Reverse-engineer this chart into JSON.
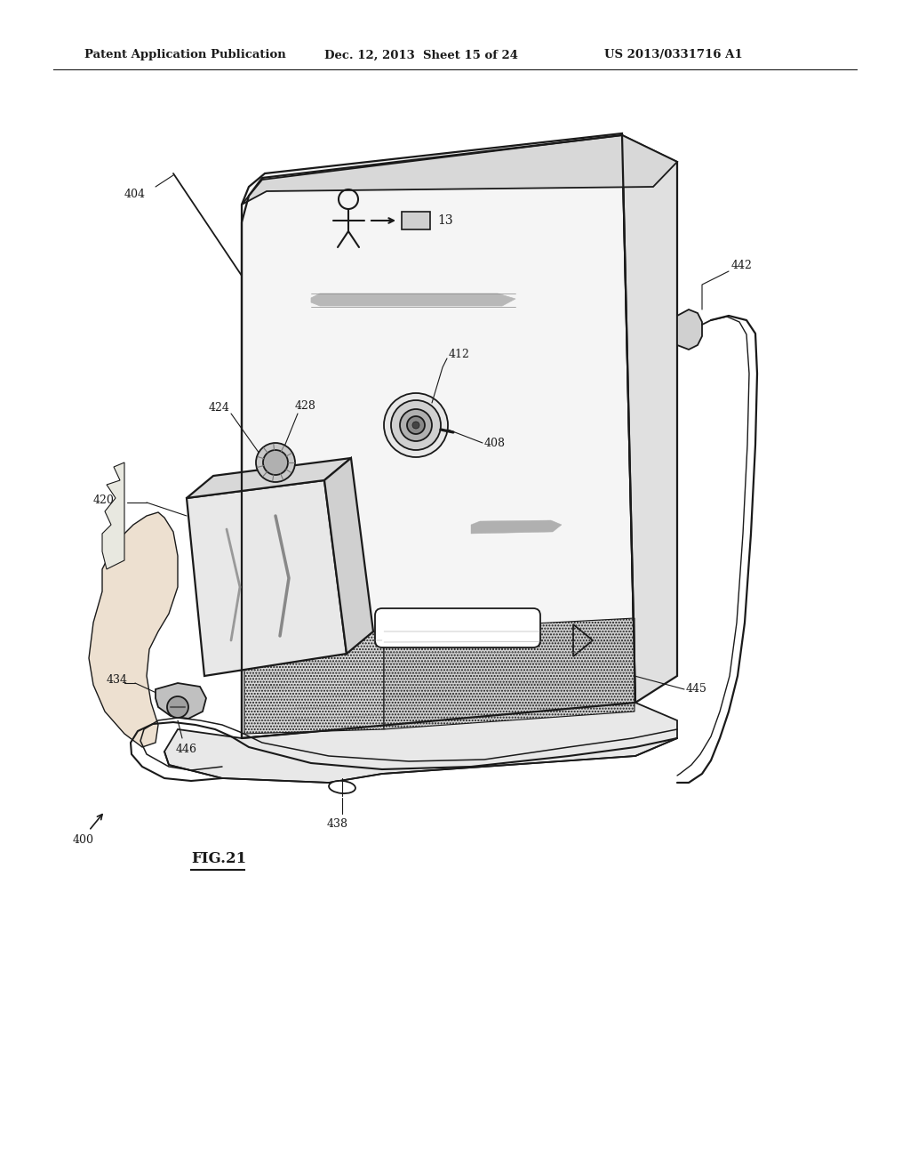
{
  "header_left": "Patent Application Publication",
  "header_mid": "Dec. 12, 2013  Sheet 15 of 24",
  "header_right": "US 2013/0331716 A1",
  "fig_label": "FIG.21",
  "bg_color": "#ffffff",
  "line_color": "#1a1a1a",
  "gray_light": "#c8c8c8",
  "gray_mid": "#999999",
  "gray_dark": "#555555"
}
